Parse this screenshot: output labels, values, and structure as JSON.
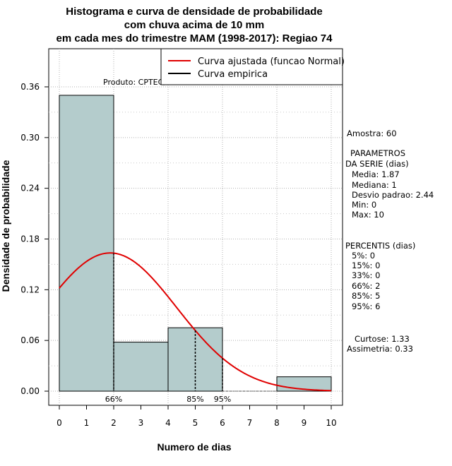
{
  "chart_data": {
    "type": "bar",
    "title_lines": [
      "Histograma e curva de densidade de probabilidade",
      "com chuva acima de 10 mm",
      "em cada mes do trimestre MAM (1998-2017): Regiao 74"
    ],
    "xlabel": "Numero de dias",
    "ylabel": "Densidade de probabilidade",
    "xlim": [
      0,
      10
    ],
    "ylim": [
      0,
      0.36
    ],
    "x_ticks": [
      0,
      1,
      2,
      3,
      4,
      5,
      6,
      7,
      8,
      9,
      10
    ],
    "y_ticks": [
      0.0,
      0.06,
      0.12,
      0.18,
      0.24,
      0.3,
      0.36
    ],
    "y_tick_labels": [
      "0.00",
      "0.06",
      "0.12",
      "0.18",
      "0.24",
      "0.30",
      "0.36"
    ],
    "grid": true,
    "bars": [
      {
        "x0": 0,
        "x1": 2,
        "value": 0.35
      },
      {
        "x0": 2,
        "x1": 4,
        "value": 0.058
      },
      {
        "x0": 4,
        "x1": 6,
        "value": 0.075
      },
      {
        "x0": 6,
        "x1": 8,
        "value": 0.0
      },
      {
        "x0": 8,
        "x1": 10,
        "value": 0.017
      }
    ],
    "normal_curve": {
      "name": "Curva ajustada (funcao Normal)",
      "mean": 1.87,
      "sd": 2.44,
      "color": "#e00000"
    },
    "empirical_curve": {
      "name": "Curva empirica",
      "color": "#000000"
    },
    "percentile_markers": [
      {
        "x": 2,
        "label": "66%"
      },
      {
        "x": 5,
        "label": "85%"
      },
      {
        "x": 6,
        "label": "95%"
      }
    ],
    "product_label": "Produto: CPTEC/INPE",
    "legend_position": "top-right",
    "bar_fill": "#b4cccc"
  },
  "side_panel": {
    "sample": "Amostra: 60",
    "params_title_1": "PARAMETROS",
    "params_title_2": "DA SERIE (dias)",
    "params": [
      "Media: 1.87",
      "Mediana: 1",
      "Desvio padrao: 2.44",
      "Min: 0",
      "Max: 10"
    ],
    "percentiles_title": "PERCENTIS (dias)",
    "percentiles": [
      "5%: 0",
      "15%: 0",
      "33%: 0",
      "66%: 2",
      "85%: 5",
      "95%: 6"
    ],
    "curtose": "Curtose: 1.33",
    "assimetria": "Assimetria: 0.33"
  }
}
